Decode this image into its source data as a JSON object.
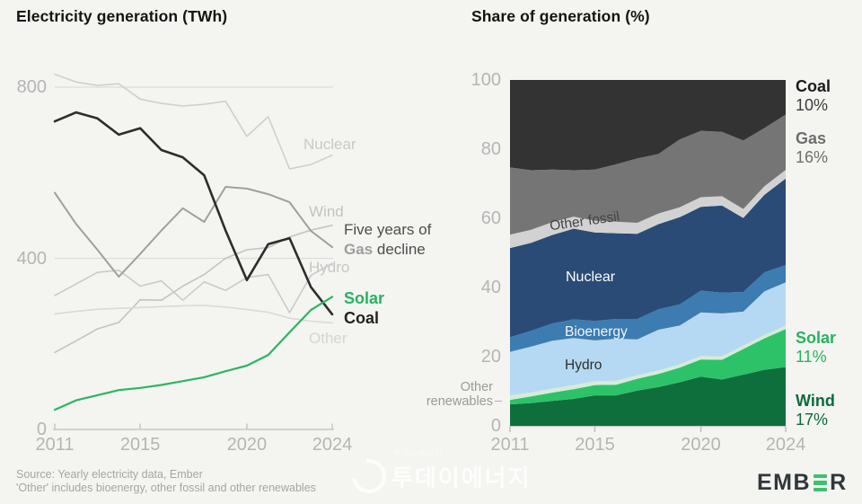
{
  "page": {
    "background": "#f4f4f1"
  },
  "left_chart": {
    "title": "Electricity generation (TWh)",
    "line_labels": {
      "nuclear": "Nuclear",
      "wind": "Wind",
      "hydro": "Hydro",
      "other": "Other"
    },
    "end_labels": {
      "solar": "Solar",
      "coal": "Coal"
    },
    "annotation": {
      "line1": "Five years of",
      "bold": "Gas",
      "rest": " decline"
    }
  },
  "right_chart": {
    "title": "Share of generation (%)",
    "side_labels": {
      "coal": {
        "name": "Coal",
        "value": "10%"
      },
      "gas": {
        "name": "Gas",
        "value": "16%"
      },
      "solar": {
        "name": "Solar",
        "value": "11%"
      },
      "wind": {
        "name": "Wind",
        "value": "17%"
      }
    },
    "inner_labels": {
      "other_fossil": "Other fossil",
      "nuclear": "Nuclear",
      "bioenergy": "Bioenergy",
      "hydro": "Hydro"
    },
    "axis_left_label": {
      "line1": "Other",
      "line2": "renewables"
    }
  },
  "chart_data": [
    {
      "type": "line",
      "title": "Electricity generation (TWh)",
      "x": [
        2011,
        2012,
        2013,
        2014,
        2015,
        2016,
        2017,
        2018,
        2019,
        2020,
        2021,
        2022,
        2023,
        2024
      ],
      "x_ticks": [
        "2011",
        "2015",
        "2020",
        "2024"
      ],
      "y_ticks": [
        "800",
        "400",
        "0"
      ],
      "ylim": [
        0,
        860
      ],
      "grid": "horizontal",
      "legend_position": "inline-right",
      "series": [
        {
          "name": "Nuclear",
          "color": "#cfcfcf",
          "width": 1.6,
          "values": [
            830,
            812,
            804,
            808,
            772,
            762,
            756,
            760,
            767,
            685,
            731,
            609,
            619,
            641
          ]
        },
        {
          "name": "Wind",
          "color": "#c3c3c3",
          "width": 1.6,
          "values": [
            180,
            207,
            235,
            250,
            303,
            302,
            335,
            362,
            400,
            420,
            425,
            450,
            466,
            477
          ]
        },
        {
          "name": "Hydro",
          "color": "#cacaca",
          "width": 1.6,
          "values": [
            313,
            340,
            367,
            372,
            335,
            347,
            302,
            345,
            325,
            355,
            362,
            273,
            360,
            388
          ]
        },
        {
          "name": "Other",
          "color": "#d9d9d9",
          "width": 1.6,
          "values": [
            270,
            276,
            281,
            283,
            285,
            287,
            289,
            290,
            286,
            280,
            274,
            260,
            253,
            249
          ]
        },
        {
          "name": "Gas",
          "color": "#9f9f9f",
          "width": 2,
          "values": [
            553,
            480,
            420,
            357,
            410,
            465,
            517,
            485,
            567,
            563,
            550,
            531,
            464,
            426
          ]
        },
        {
          "name": "Coal",
          "color": "#2d2d2d",
          "width": 2.6,
          "values": [
            720,
            741,
            727,
            689,
            704,
            653,
            636,
            594,
            465,
            349,
            433,
            447,
            333,
            269
          ]
        },
        {
          "name": "Solar",
          "color": "#2db562",
          "width": 2.2,
          "values": [
            46,
            68,
            80,
            92,
            97,
            104,
            113,
            122,
            136,
            149,
            174,
            227,
            279,
            310
          ]
        }
      ]
    },
    {
      "type": "area",
      "title": "Share of generation (%)",
      "x": [
        2011,
        2012,
        2013,
        2014,
        2015,
        2016,
        2017,
        2018,
        2019,
        2020,
        2021,
        2022,
        2023,
        2024
      ],
      "x_ticks": [
        "2011",
        "2015",
        "2020",
        "2024"
      ],
      "y_ticks": [
        "100",
        "80",
        "60",
        "40",
        "20",
        "0"
      ],
      "ylim": [
        0,
        100
      ],
      "stack_order": "bottom_to_top",
      "series": [
        {
          "name": "Wind",
          "color": "#0e6f3d",
          "values": [
            6.2,
            6.6,
            7.2,
            7.8,
            8.8,
            8.8,
            10.2,
            11.2,
            12.6,
            14.2,
            13.4,
            14.8,
            16.2,
            17
          ]
        },
        {
          "name": "Solar",
          "color": "#2ec268",
          "values": [
            1.3,
            1.9,
            2.4,
            2.8,
            3.0,
            3.1,
            3.4,
            3.8,
            4.2,
            5.0,
            5.7,
            7.4,
            9.1,
            11
          ]
        },
        {
          "name": "Other renewables",
          "color": "#d5ecd8",
          "values": [
            1.3,
            1.2,
            1.2,
            1.2,
            1.1,
            1.1,
            1.0,
            1.0,
            1.0,
            1.0,
            1.0,
            1.0,
            1.0,
            1.0
          ]
        },
        {
          "name": "Hydro",
          "color": "#b5d9f2",
          "values": [
            12.6,
            13.2,
            13.8,
            13.6,
            11.8,
            12.2,
            10.4,
            11.8,
            11.2,
            12.6,
            12.4,
            9.8,
            12.6,
            12.5
          ]
        },
        {
          "name": "Bioenergy",
          "color": "#3c7cb0",
          "values": [
            4.2,
            4.6,
            5.0,
            5.4,
            5.6,
            5.7,
            5.9,
            5.9,
            6.1,
            6.3,
            6.0,
            5.7,
            5.5,
            5.0
          ]
        },
        {
          "name": "Nuclear",
          "color": "#2a4b76",
          "values": [
            25.8,
            25.4,
            25.6,
            26.2,
            25.6,
            24.8,
            24.6,
            24.6,
            25.2,
            24.2,
            25.2,
            21.4,
            22.4,
            25.0
          ]
        },
        {
          "name": "Other fossil",
          "color": "#d2d2d2",
          "values": [
            3.9,
            3.8,
            3.7,
            3.5,
            3.4,
            3.3,
            3.2,
            3.1,
            2.9,
            2.8,
            2.7,
            2.6,
            2.5,
            2.5
          ]
        },
        {
          "name": "Gas",
          "color": "#757575",
          "values": [
            19.4,
            17.2,
            15.2,
            13.4,
            14.8,
            16.6,
            18.6,
            17.2,
            19.6,
            19.2,
            18.6,
            19.8,
            16.8,
            16
          ]
        },
        {
          "name": "Coal",
          "color": "#333333",
          "values": [
            25.3,
            26.1,
            25.9,
            26.1,
            25.9,
            24.4,
            22.7,
            21.4,
            17.2,
            14.7,
            15.0,
            17.5,
            13.9,
            10
          ]
        }
      ]
    }
  ],
  "footer": {
    "source_line1": "Source: Yearly electricity data, Ember",
    "source_line2": "'Other' includes bioenergy, other fossil and other renewables",
    "watermark_small": "투데이에너지",
    "watermark": "투데이에너지",
    "logo_prefix": "EMB",
    "logo_suffix": "R",
    "logo_accent_color": "#3ec06f"
  }
}
